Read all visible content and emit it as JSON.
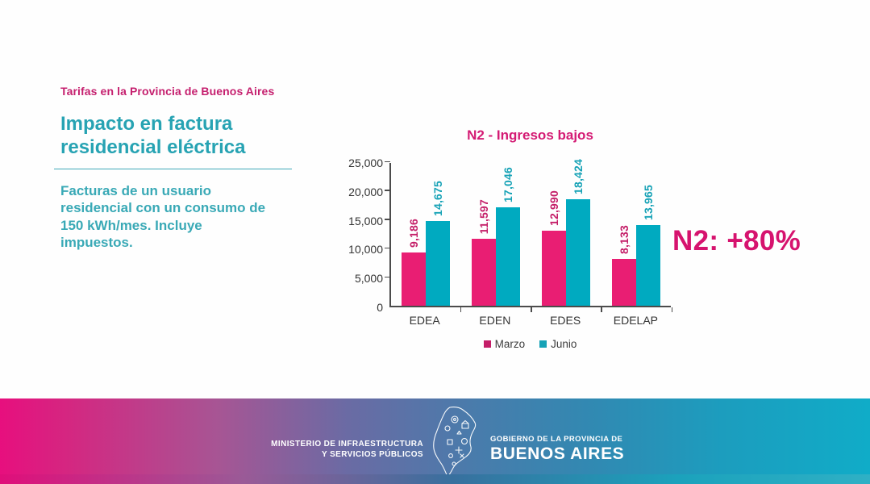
{
  "slide": {
    "kicker": "Tarifas en la Provincia de Buenos Aires",
    "title": "Impacto en factura residencial eléctrica",
    "description": "Facturas de un usuario residencial con un consumo de 150 kWh/mes. Incluye impuestos.",
    "annotation": "N2: +80%"
  },
  "chart_data": {
    "type": "bar",
    "title": "N2 - Ingresos bajos",
    "categories": [
      "EDEA",
      "EDEN",
      "EDES",
      "EDELAP"
    ],
    "series": [
      {
        "name": "Marzo",
        "color": "#e91e73",
        "label_color": "#c41e68",
        "values": [
          9186,
          11597,
          12990,
          8133
        ],
        "labels": [
          "9,186",
          "11,597",
          "12,990",
          "8,133"
        ]
      },
      {
        "name": "Junio",
        "color": "#00aac0",
        "label_color": "#16a2b6",
        "values": [
          14675,
          17046,
          18424,
          13965
        ],
        "labels": [
          "14,675",
          "17,046",
          "18,424",
          "13,965"
        ]
      }
    ],
    "ylim": [
      0,
      25000
    ],
    "ytick_step": 5000,
    "yticks": [
      "0",
      "5,000",
      "10,000",
      "15,000",
      "20,000",
      "25,000"
    ],
    "grid": false,
    "legend_position": "bottom"
  },
  "footer": {
    "ministry_line1": "MINISTERIO DE INFRAESTRUCTURA",
    "ministry_line2": "Y SERVICIOS PÚBLICOS",
    "government_line1": "GOBIERNO DE LA PROVINCIA DE",
    "government_line2": "BUENOS AIRES"
  },
  "colors": {
    "kicker_magenta": "#c51f6e",
    "title_teal": "#27a3b3",
    "chart_title_magenta": "#d41b74",
    "annotation_magenta": "#d6136e",
    "footer_gradient_left": "#e70f7e",
    "footer_gradient_right": "#10acc8"
  }
}
